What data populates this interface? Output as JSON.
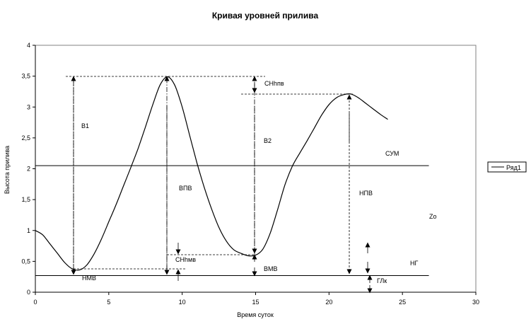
{
  "chart_data": {
    "type": "line",
    "title": "Кривая уровней прилива",
    "xlabel": "Время суток",
    "ylabel": "Высота прилива",
    "xlim": [
      0,
      30
    ],
    "ylim": [
      0,
      4
    ],
    "x_ticks": [
      "0",
      "5",
      "10",
      "15",
      "20",
      "25",
      "30"
    ],
    "y_ticks": [
      "0",
      "0,5",
      "1",
      "1,5",
      "2",
      "2,5",
      "3",
      "3,5",
      "4"
    ],
    "grid": false,
    "legend_position": "right",
    "series": [
      {
        "name": "Ряд1",
        "color": "#000000",
        "points": [
          [
            0,
            1.0
          ],
          [
            0.5,
            0.93
          ],
          [
            1.0,
            0.78
          ],
          [
            1.5,
            0.63
          ],
          [
            2.0,
            0.48
          ],
          [
            2.5,
            0.38
          ],
          [
            3.0,
            0.36
          ],
          [
            3.5,
            0.44
          ],
          [
            4.0,
            0.62
          ],
          [
            4.5,
            0.86
          ],
          [
            5.0,
            1.14
          ],
          [
            5.5,
            1.42
          ],
          [
            6.0,
            1.72
          ],
          [
            6.5,
            2.02
          ],
          [
            7.0,
            2.33
          ],
          [
            7.5,
            2.68
          ],
          [
            8.0,
            3.04
          ],
          [
            8.5,
            3.36
          ],
          [
            9.0,
            3.49
          ],
          [
            9.5,
            3.35
          ],
          [
            10.0,
            3.0
          ],
          [
            10.5,
            2.55
          ],
          [
            11.0,
            2.1
          ],
          [
            11.5,
            1.7
          ],
          [
            12.0,
            1.35
          ],
          [
            12.5,
            1.05
          ],
          [
            13.0,
            0.83
          ],
          [
            13.5,
            0.69
          ],
          [
            14.0,
            0.63
          ],
          [
            14.5,
            0.59
          ],
          [
            15.0,
            0.6
          ],
          [
            15.5,
            0.7
          ],
          [
            16.0,
            0.96
          ],
          [
            16.5,
            1.34
          ],
          [
            17.0,
            1.74
          ],
          [
            17.5,
            2.04
          ],
          [
            18.0,
            2.25
          ],
          [
            18.5,
            2.45
          ],
          [
            19.0,
            2.66
          ],
          [
            19.5,
            2.87
          ],
          [
            20.0,
            3.04
          ],
          [
            20.5,
            3.15
          ],
          [
            21.0,
            3.2
          ],
          [
            21.5,
            3.21
          ],
          [
            22.0,
            3.15
          ],
          [
            22.5,
            3.06
          ],
          [
            23.0,
            2.97
          ],
          [
            23.5,
            2.88
          ],
          [
            24.0,
            2.8
          ]
        ]
      }
    ],
    "reference_lines": [
      {
        "name": "СУМ",
        "y": 2.05,
        "x_range": [
          0,
          26.8
        ]
      },
      {
        "name": "НГ",
        "y": 0.27,
        "x_range": [
          0,
          26.8
        ]
      }
    ],
    "annotations": [
      "В1",
      "В2",
      "ВПВ",
      "НПВ",
      "ВМВ",
      "НМВ",
      "СНhпв",
      "СНhмв",
      "СУМ",
      "НГ",
      "ГЛк",
      "Zo"
    ]
  }
}
